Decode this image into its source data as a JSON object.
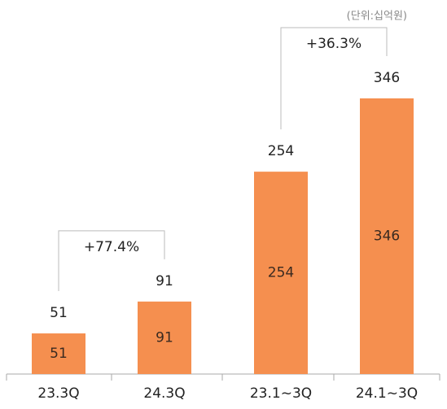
{
  "chart_data": {
    "type": "bar",
    "unit_label": "(단위:십억원)",
    "categories": [
      "23.3Q",
      "24.3Q",
      "23.1~3Q",
      "24.1~3Q"
    ],
    "values": [
      51,
      91,
      254,
      346
    ],
    "color": "#f58f4f",
    "annotations": [
      "+77.4%",
      "+36.3%"
    ]
  }
}
